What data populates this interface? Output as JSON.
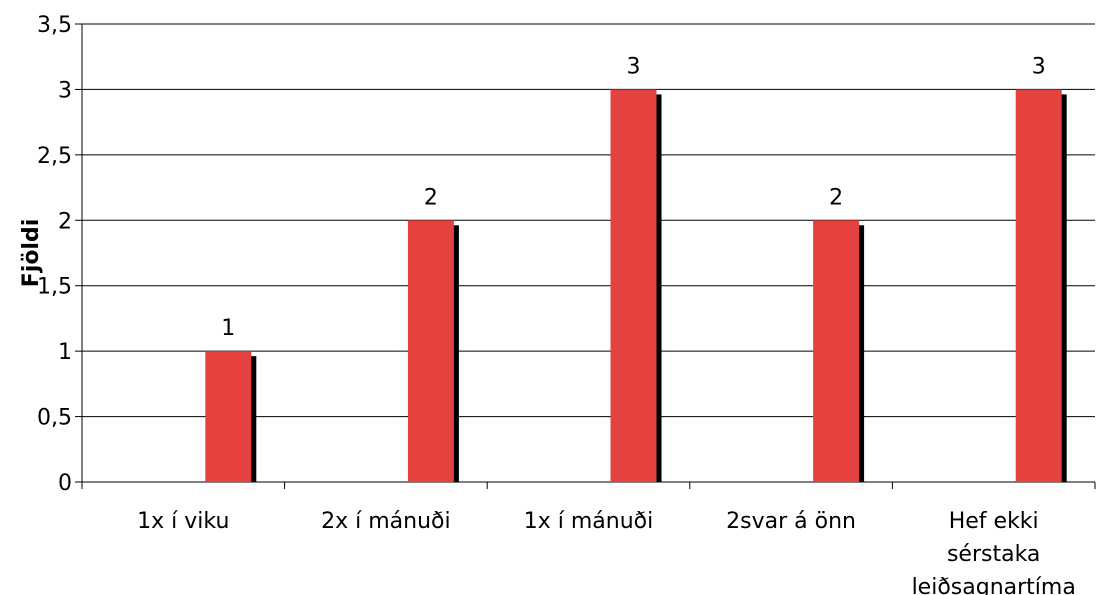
{
  "chart_data": {
    "type": "bar",
    "categories": [
      "1x í viku",
      "2x í mánuði",
      "1x í mánuði",
      "2svar á önn",
      "Hef ekki sérstaka leiðsagnartíma"
    ],
    "category_lines": [
      [
        "1x í viku"
      ],
      [
        "2x í mánuði"
      ],
      [
        "1x í mánuði"
      ],
      [
        "2svar á önn"
      ],
      [
        "Hef ekki",
        "sérstaka",
        "leiðsagnartíma"
      ]
    ],
    "values": [
      1,
      2,
      3,
      2,
      3
    ],
    "data_labels": [
      "1",
      "2",
      "3",
      "2",
      "3"
    ],
    "title": "",
    "xlabel": "",
    "ylabel": "Fjöldi",
    "ylim": [
      0,
      3.5
    ],
    "yticks": [
      0,
      0.5,
      1,
      1.5,
      2,
      2.5,
      3,
      3.5
    ],
    "ytick_labels": [
      "0",
      "0,5",
      "1",
      "1,5",
      "2",
      "2,5",
      "3",
      "3,5"
    ],
    "grid": true,
    "legend": "none",
    "bar_color": "#e5423f",
    "shadow_color": "#000000"
  }
}
